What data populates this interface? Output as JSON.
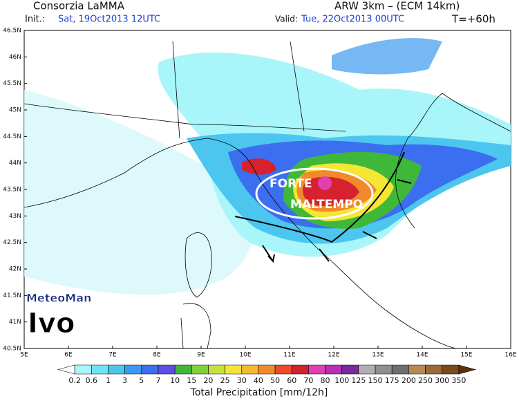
{
  "header": {
    "title": "Consorzia LaMMA",
    "init_label": "Init.:",
    "init": "Sat, 19Oct2013 12UTC",
    "model": "ARW 3km – (ECM 14km)",
    "valid_label": "Valid:",
    "valid": "Tue, 22Oct2013 00UTC",
    "lead": "T=+60h"
  },
  "map": {
    "lat_labels": [
      "46.5N",
      "46N",
      "45.5N",
      "45N",
      "44.5N",
      "44N",
      "43.5N",
      "43N",
      "42.5N",
      "42N",
      "41.5N",
      "41N",
      "40.5N"
    ],
    "lon_labels": [
      "5E",
      "6E",
      "7E",
      "8E",
      "9E",
      "10E",
      "11E",
      "12E",
      "13E",
      "14E",
      "15E",
      "16E"
    ],
    "annotations": [
      "FORTE",
      "MALTEMPO"
    ],
    "logo": [
      "MeteoMan",
      "Ivo"
    ]
  },
  "legend": {
    "title": "Total Precipitation [mm/12h]",
    "levels": [
      0.2,
      0.6,
      1,
      3,
      5,
      7,
      10,
      15,
      20,
      25,
      30,
      40,
      50,
      60,
      70,
      80,
      100,
      125,
      150,
      175,
      200,
      250,
      300,
      350
    ],
    "colors": [
      "#ffffff",
      "#a8f5fa",
      "#6de4f2",
      "#4cc6ef",
      "#3a9af0",
      "#3c6ef0",
      "#5a50e6",
      "#3fb83a",
      "#7fd13a",
      "#c9e03a",
      "#f5e633",
      "#f5b82e",
      "#f28a2c",
      "#ec4a2a",
      "#d5222e",
      "#e23fb0",
      "#b82fb8",
      "#7a2a9a",
      "#b0b0b0",
      "#8f8f8f",
      "#6f6f6f",
      "#b58a55",
      "#9c6a36",
      "#7a4a1e",
      "#5a300e"
    ]
  }
}
